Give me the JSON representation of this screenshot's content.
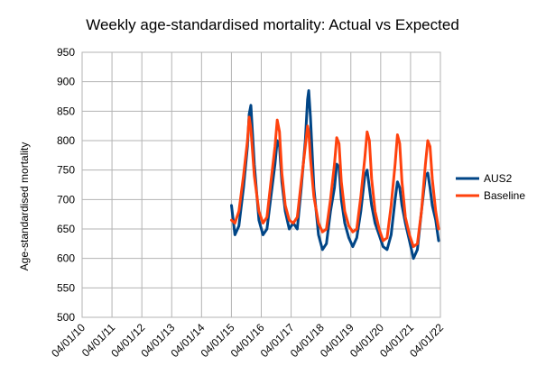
{
  "chart_data": {
    "type": "line",
    "title": "Weekly age-standardised mortality: Actual vs Expected",
    "xlabel": "",
    "ylabel": "Age-standardised mortality",
    "ylim": [
      500,
      950
    ],
    "yticks": [
      500,
      550,
      600,
      650,
      700,
      750,
      800,
      850,
      900,
      950
    ],
    "xlim": [
      "2010-01-04",
      "2022-01-04"
    ],
    "xtick_labels": [
      "04/01/10",
      "04/01/11",
      "04/01/12",
      "04/01/13",
      "04/01/14",
      "04/01/15",
      "04/01/16",
      "04/01/17",
      "04/01/18",
      "04/01/19",
      "04/01/20",
      "04/01/21",
      "04/01/22"
    ],
    "grid": "vertical-and-horizontal",
    "legend_position": "right",
    "x": [
      "2015-01-05",
      "2015-02-16",
      "2015-04-06",
      "2015-06-01",
      "2015-07-20",
      "2015-08-10",
      "2015-08-31",
      "2015-10-12",
      "2015-12-07",
      "2016-01-25",
      "2016-03-14",
      "2016-05-02",
      "2016-06-20",
      "2016-07-18",
      "2016-08-15",
      "2016-09-12",
      "2016-10-24",
      "2016-12-12",
      "2017-01-30",
      "2017-03-20",
      "2017-05-08",
      "2017-06-26",
      "2017-07-24",
      "2017-08-07",
      "2017-08-28",
      "2017-10-09",
      "2017-12-04",
      "2018-01-22",
      "2018-03-12",
      "2018-04-30",
      "2018-06-18",
      "2018-07-16",
      "2018-08-13",
      "2018-09-10",
      "2018-10-22",
      "2018-12-10",
      "2019-01-28",
      "2019-03-18",
      "2019-05-06",
      "2019-06-24",
      "2019-07-22",
      "2019-08-19",
      "2019-09-16",
      "2019-10-28",
      "2019-12-16",
      "2020-02-03",
      "2020-03-23",
      "2020-05-11",
      "2020-06-29",
      "2020-07-27",
      "2020-08-24",
      "2020-09-21",
      "2020-11-02",
      "2020-12-21",
      "2021-02-08",
      "2021-03-29",
      "2021-05-17",
      "2021-07-05",
      "2021-08-02",
      "2021-08-30",
      "2021-09-27",
      "2021-11-08",
      "2021-12-13"
    ],
    "series": [
      {
        "name": "AUS2",
        "color": "#004586",
        "values": [
          690,
          640,
          655,
          720,
          790,
          845,
          860,
          760,
          665,
          640,
          650,
          705,
          760,
          800,
          790,
          730,
          680,
          650,
          660,
          650,
          720,
          800,
          870,
          885,
          840,
          720,
          640,
          615,
          625,
          680,
          720,
          760,
          755,
          700,
          660,
          635,
          620,
          635,
          680,
          740,
          750,
          720,
          690,
          660,
          640,
          620,
          615,
          640,
          700,
          730,
          720,
          690,
          660,
          630,
          600,
          615,
          680,
          740,
          745,
          720,
          690,
          665,
          630
        ]
      },
      {
        "name": "Baseline",
        "color": "#ff420e",
        "values": [
          665,
          660,
          680,
          740,
          800,
          840,
          820,
          740,
          680,
          660,
          670,
          730,
          790,
          835,
          815,
          745,
          690,
          665,
          660,
          670,
          730,
          790,
          825,
          815,
          770,
          705,
          660,
          645,
          650,
          700,
          760,
          805,
          795,
          730,
          680,
          655,
          645,
          650,
          705,
          770,
          815,
          800,
          735,
          680,
          650,
          630,
          635,
          690,
          760,
          810,
          795,
          730,
          670,
          640,
          620,
          625,
          680,
          760,
          800,
          790,
          735,
          680,
          650
        ]
      }
    ]
  }
}
